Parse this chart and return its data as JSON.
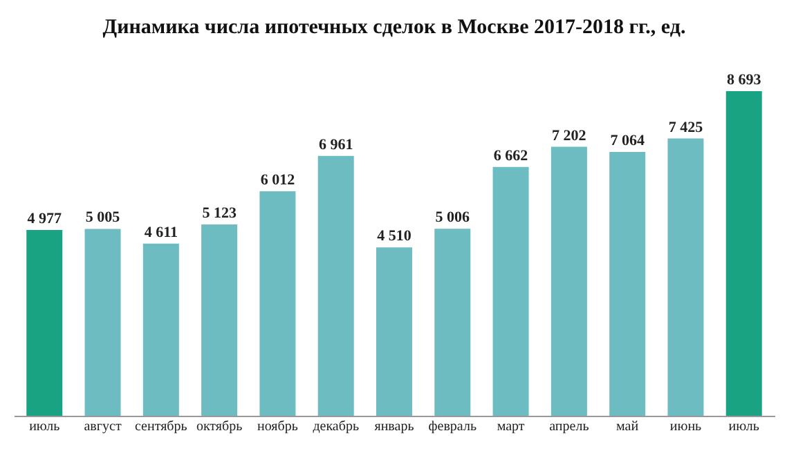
{
  "chart_data": {
    "type": "bar",
    "title": "Динамика числа ипотечных сделок в Москве 2017-2018 гг., ед.",
    "categories": [
      "июль",
      "август",
      "сентябрь",
      "октябрь",
      "ноябрь",
      "декабрь",
      "январь",
      "февраль",
      "март",
      "апрель",
      "май",
      "июнь",
      "июль"
    ],
    "values": [
      4977,
      5005,
      4611,
      5123,
      6012,
      6961,
      4510,
      5006,
      6662,
      7202,
      7064,
      7425,
      8693
    ],
    "value_labels": [
      "4 977",
      "5 005",
      "4 611",
      "5 123",
      "6 012",
      "6 961",
      "4 510",
      "5 006",
      "6 662",
      "7 202",
      "7 064",
      "7 425",
      "8 693"
    ],
    "colors": [
      "#1aa383",
      "#6dbcc1",
      "#6dbcc1",
      "#6dbcc1",
      "#6dbcc1",
      "#6dbcc1",
      "#6dbcc1",
      "#6dbcc1",
      "#6dbcc1",
      "#6dbcc1",
      "#6dbcc1",
      "#6dbcc1",
      "#1aa383"
    ],
    "tick_labels": "x",
    "grid": false
  }
}
